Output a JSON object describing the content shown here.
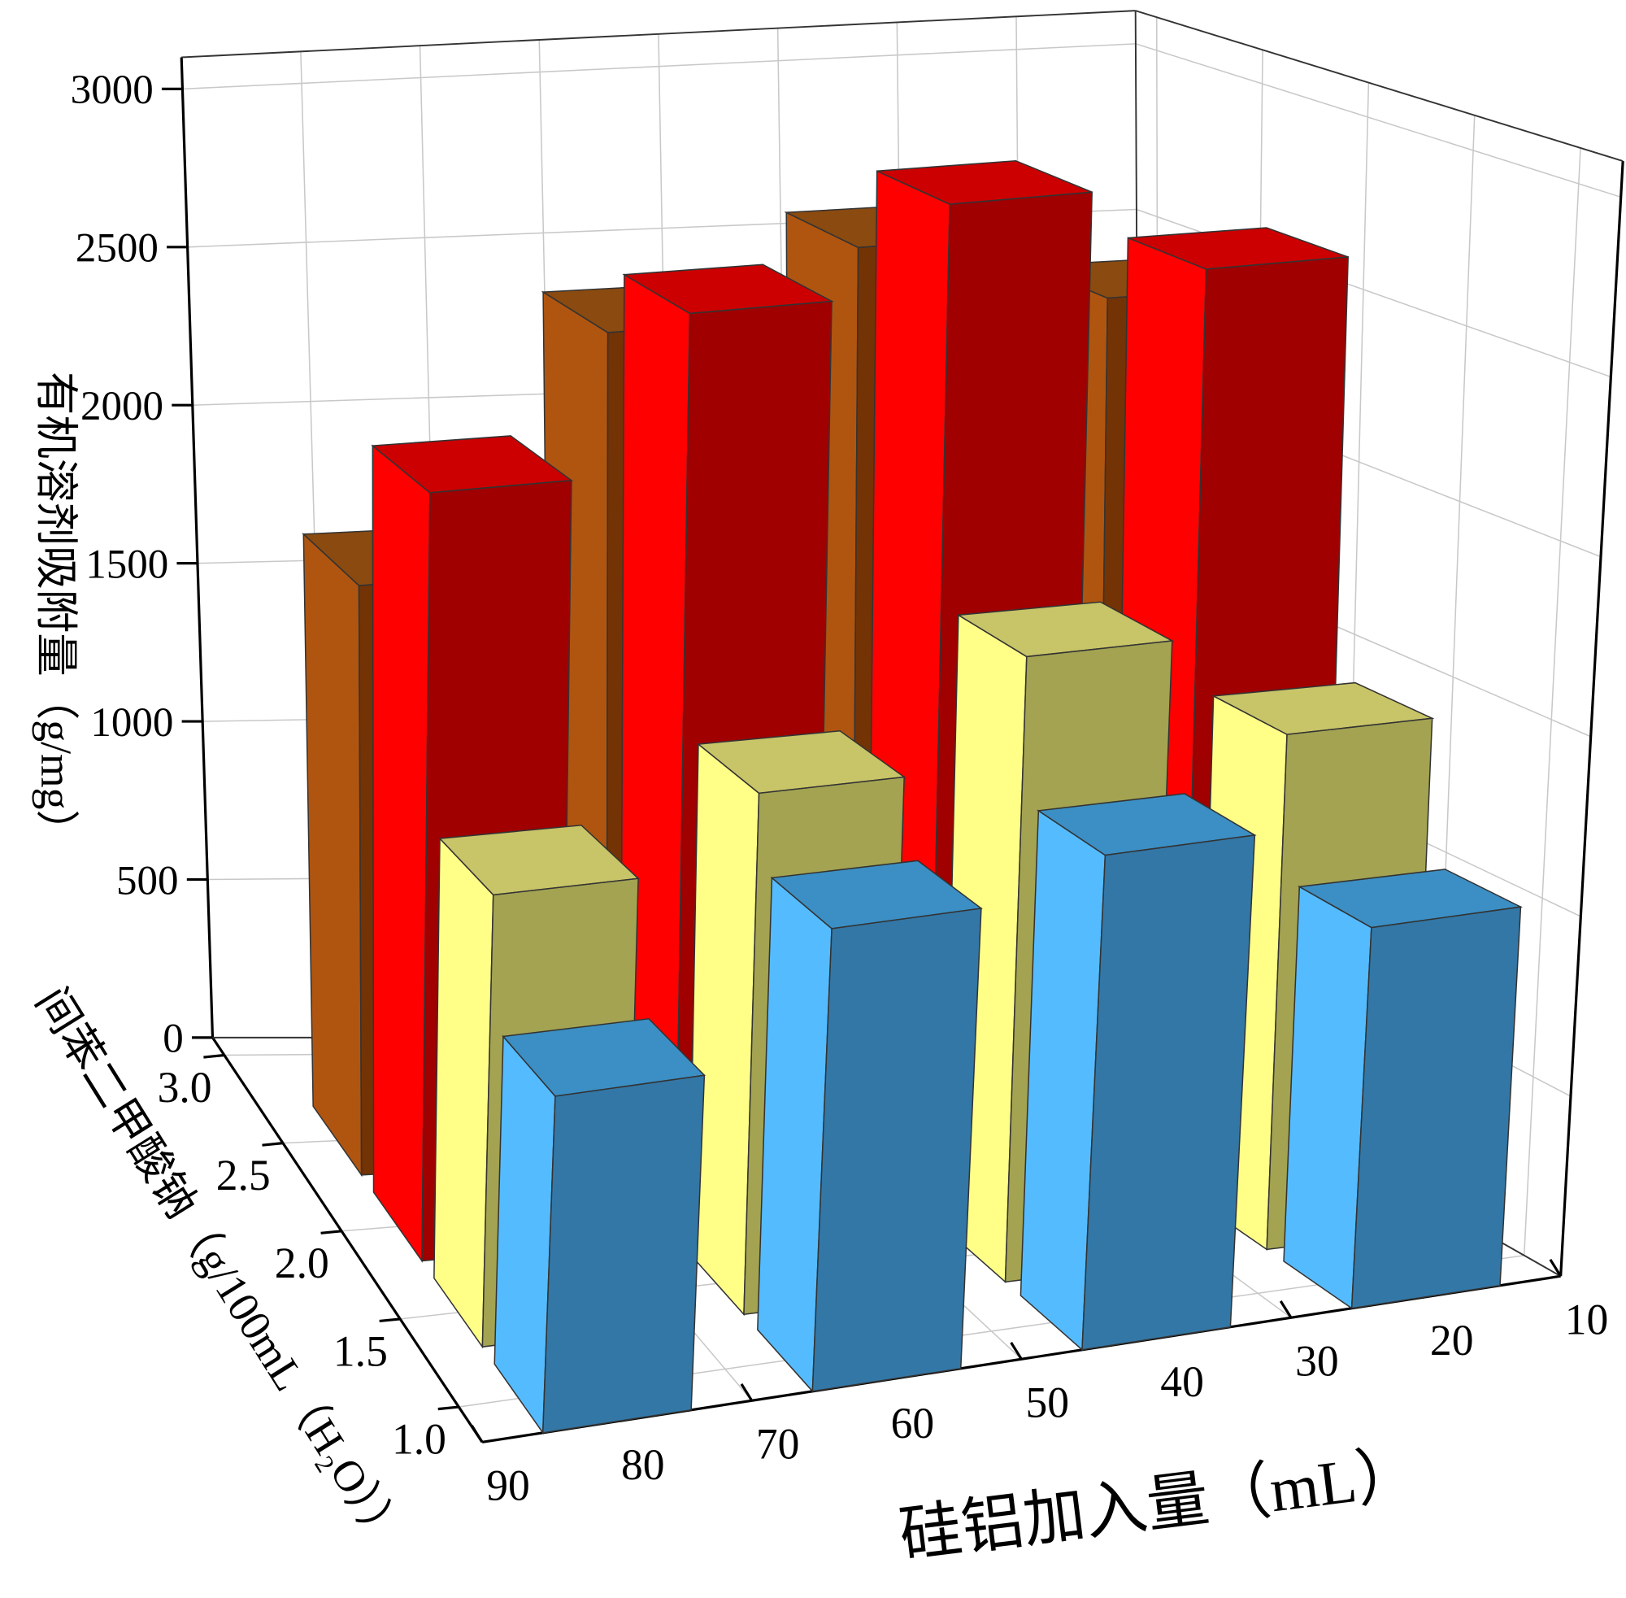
{
  "chart_data": {
    "type": "bar3d",
    "x_label": "硅铝加入量（mL）",
    "y_label": "间苯二甲酸钠（g/100mL（H₂O））",
    "z_label": "有机溶剂吸附量（g/mg）",
    "categories": [
      80,
      60,
      40,
      20
    ],
    "xlim": [
      90,
      10
    ],
    "xticks": [
      90,
      80,
      70,
      60,
      50,
      40,
      30,
      20,
      10
    ],
    "ylim": [
      0.8,
      3.1
    ],
    "yticks": [
      {
        "value": 1,
        "label": "1.0"
      },
      1.5,
      {
        "value": 2,
        "label": "2.0"
      },
      2.5,
      {
        "value": 3,
        "label": "3.0"
      }
    ],
    "zlim": [
      0,
      3100
    ],
    "zticks": [
      0,
      500,
      1000,
      1500,
      2000,
      2500,
      3000
    ],
    "grid": true,
    "series": [
      {
        "depth": 2.5,
        "color": "#733305",
        "side_color": "#b05510",
        "top_color": "#8a4a10",
        "values": [
          1750,
          2450,
          2650,
          2450
        ]
      },
      {
        "depth": 2.0,
        "color": "#a00000",
        "side_color": "#ff0000",
        "top_color": "#cc0000",
        "values": [
          2200,
          2650,
          2900,
          2650
        ]
      },
      {
        "depth": 1.5,
        "color": "#a3a352",
        "side_color": "#ffff88",
        "top_color": "#c8c468",
        "values": [
          1250,
          1450,
          1750,
          1450
        ]
      },
      {
        "depth": 1.0,
        "color": "#3377a6",
        "side_color": "#55bbff",
        "top_color": "#3b8fc4",
        "values": [
          900,
          1250,
          1350,
          1050
        ]
      }
    ]
  }
}
